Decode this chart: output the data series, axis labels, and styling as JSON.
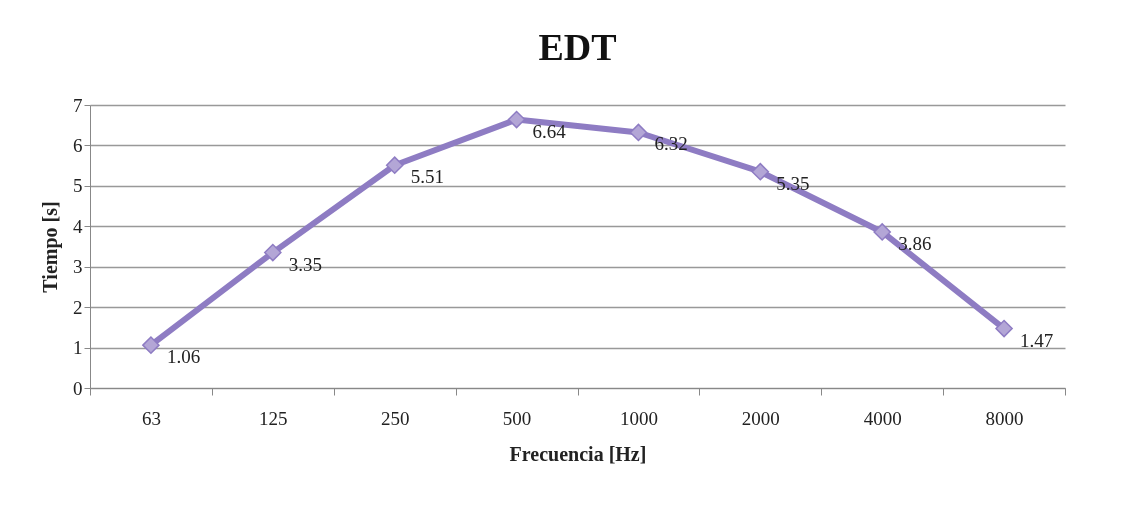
{
  "chart_data": {
    "type": "line",
    "title": "EDT",
    "xlabel": "Frecuencia [Hz]",
    "ylabel": "Tiempo [s]",
    "categories": [
      "63",
      "125",
      "250",
      "500",
      "1000",
      "2000",
      "4000",
      "8000"
    ],
    "series": [
      {
        "color": "#8e7cc3",
        "values": [
          1.06,
          3.35,
          5.51,
          6.64,
          6.32,
          5.35,
          3.86,
          1.47
        ]
      }
    ],
    "ylim": [
      0,
      7
    ],
    "yticks": [
      0,
      1,
      2,
      3,
      4,
      5,
      6,
      7
    ],
    "grid": "y",
    "marker": "diamond",
    "line_style": "solid",
    "data_labels": true
  }
}
